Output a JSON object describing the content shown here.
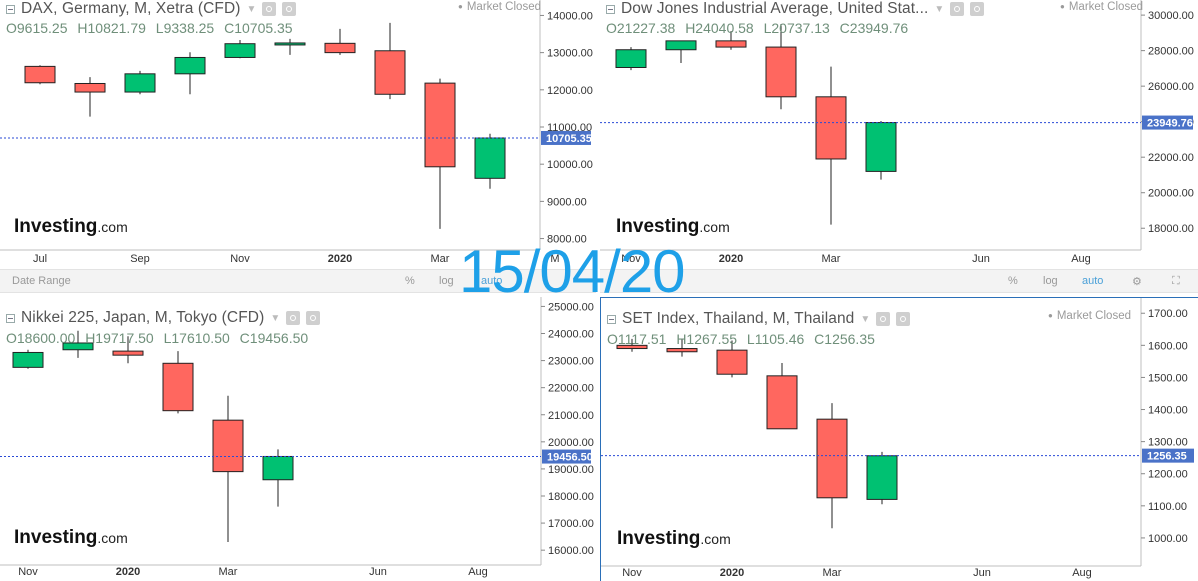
{
  "stamp": "15/04/20",
  "toolbars": [
    {
      "date_range": "Date Range",
      "pct": "%",
      "log": "log",
      "auto": "auto"
    },
    {
      "date_range": "",
      "pct": "%",
      "log": "log",
      "auto": "auto"
    }
  ],
  "colors": {
    "up": "#00c172",
    "down": "#ff675f",
    "price_line": "#2a4ad6",
    "price_tag": "#4a72c8"
  },
  "chart_data": [
    {
      "type": "candlestick",
      "title": "DAX, Germany, M, Xetra (CFD)",
      "ohlc_labels": [
        "O9615.25",
        "H10821.79",
        "L9338.25",
        "C10705.35"
      ],
      "market_status": "Market Closed",
      "logo": "Investing",
      "logo_suffix": ".com",
      "last_price": 10705.35,
      "last_price_label": "10705.35",
      "ylim": [
        7800,
        14200
      ],
      "y_ticks": [
        8000,
        9000,
        10000,
        11000,
        12000,
        13000,
        14000
      ],
      "y_tick_labels": [
        "8000.00",
        "9000.00",
        "10000.00",
        "11000.00",
        "12000.00",
        "13000.00",
        "14000.00"
      ],
      "x_ticks": [
        {
          "label": "Jul",
          "i": 0.3
        },
        {
          "label": "Sep",
          "i": 2.3
        },
        {
          "label": "Nov",
          "i": 4.3
        },
        {
          "label": "2020",
          "i": 6.3
        },
        {
          "label": "Mar",
          "i": 8.3
        },
        {
          "label": "M",
          "i": 10.6
        }
      ],
      "candles": [
        {
          "o": 12630,
          "h": 12660,
          "l": 12150,
          "c": 12190
        },
        {
          "o": 12170,
          "h": 12340,
          "l": 11280,
          "c": 11940
        },
        {
          "o": 11940,
          "h": 12510,
          "l": 11880,
          "c": 12430
        },
        {
          "o": 12430,
          "h": 13010,
          "l": 11880,
          "c": 12870
        },
        {
          "o": 12870,
          "h": 13340,
          "l": 12850,
          "c": 13240
        },
        {
          "o": 13250,
          "h": 13370,
          "l": 12940,
          "c": 13260
        },
        {
          "o": 13250,
          "h": 13640,
          "l": 12940,
          "c": 13000
        },
        {
          "o": 13050,
          "h": 13800,
          "l": 11750,
          "c": 11880
        },
        {
          "o": 12180,
          "h": 12300,
          "l": 8260,
          "c": 9930
        },
        {
          "o": 9620,
          "h": 10820,
          "l": 9340,
          "c": 10705
        }
      ]
    },
    {
      "type": "candlestick",
      "title": "Dow Jones Industrial Average, United Stat...",
      "ohlc_labels": [
        "O21227.38",
        "H24040.58",
        "L20737.13",
        "C23949.76"
      ],
      "market_status": "Market Closed",
      "logo": "Investing",
      "logo_suffix": ".com",
      "last_price": 23949.76,
      "last_price_label": "23949.76",
      "ylim": [
        17000,
        30400
      ],
      "y_ticks": [
        18000,
        20000,
        22000,
        24000,
        26000,
        28000,
        30000
      ],
      "y_tick_labels": [
        "18000.00",
        "20000.00",
        "22000.00",
        "24000.00",
        "26000.00",
        "28000.00",
        "30000.00"
      ],
      "x_ticks": [
        {
          "label": "Nov",
          "i": 0.3
        },
        {
          "label": "2020",
          "i": 2.3
        },
        {
          "label": "Mar",
          "i": 4.3
        },
        {
          "label": "Jun",
          "i": 7.3
        },
        {
          "label": "Aug",
          "i": 9.3
        }
      ],
      "candles": [
        {
          "o": 27050,
          "h": 28200,
          "l": 26900,
          "c": 28050
        },
        {
          "o": 28050,
          "h": 28550,
          "l": 27300,
          "c": 28550
        },
        {
          "o": 28550,
          "h": 29100,
          "l": 28050,
          "c": 28200
        },
        {
          "o": 28200,
          "h": 29500,
          "l": 24700,
          "c": 25400
        },
        {
          "o": 25400,
          "h": 27100,
          "l": 18200,
          "c": 21900
        },
        {
          "o": 21200,
          "h": 24040,
          "l": 20740,
          "c": 23950
        }
      ]
    },
    {
      "type": "candlestick",
      "title": "Nikkei 225, Japan, M, Tokyo (CFD)",
      "ohlc_labels": [
        "O18600.00",
        "H19717.50",
        "L17610.50",
        "C19456.50"
      ],
      "market_status": "",
      "logo": "Investing",
      "logo_suffix": ".com",
      "last_price": 19456.5,
      "last_price_label": "19456.50",
      "ylim": [
        15600,
        25200
      ],
      "y_ticks": [
        16000,
        17000,
        18000,
        19000,
        20000,
        21000,
        22000,
        23000,
        24000,
        25000
      ],
      "y_tick_labels": [
        "16000.00",
        "17000.00",
        "18000.00",
        "19000.00",
        "20000.00",
        "21000.00",
        "22000.00",
        "23000.00",
        "24000.00",
        "25000.00"
      ],
      "x_ticks": [
        {
          "label": "Nov",
          "i": 0.3
        },
        {
          "label": "2020",
          "i": 2.3
        },
        {
          "label": "Mar",
          "i": 4.3
        },
        {
          "label": "Jun",
          "i": 7.3
        },
        {
          "label": "Aug",
          "i": 9.3
        }
      ],
      "candles": [
        {
          "o": 22750,
          "h": 23400,
          "l": 22700,
          "c": 23300
        },
        {
          "o": 23400,
          "h": 24100,
          "l": 23100,
          "c": 23650
        },
        {
          "o": 23350,
          "h": 23900,
          "l": 22900,
          "c": 23200
        },
        {
          "o": 22900,
          "h": 23350,
          "l": 21050,
          "c": 21150
        },
        {
          "o": 20800,
          "h": 21700,
          "l": 16300,
          "c": 18900
        },
        {
          "o": 18600,
          "h": 19720,
          "l": 17610,
          "c": 19460
        }
      ]
    },
    {
      "type": "candlestick",
      "title": "SET Index, Thailand, M, Thailand",
      "ohlc_labels": [
        "O1117.51",
        "H1267.55",
        "L1105.46",
        "C1256.35"
      ],
      "market_status": "Market Closed",
      "logo": "Investing",
      "logo_suffix": ".com",
      "last_price": 1256.35,
      "last_price_label": "1256.35",
      "ylim": [
        925,
        1735
      ],
      "y_ticks": [
        1000,
        1100,
        1200,
        1300,
        1400,
        1500,
        1600,
        1700
      ],
      "y_tick_labels": [
        "1000.00",
        "1100.00",
        "1200.00",
        "1300.00",
        "1400.00",
        "1500.00",
        "1600.00",
        "1700.00"
      ],
      "x_ticks": [
        {
          "label": "Nov",
          "i": 0.3
        },
        {
          "label": "2020",
          "i": 2.3
        },
        {
          "label": "Mar",
          "i": 4.3
        },
        {
          "label": "Jun",
          "i": 7.3
        },
        {
          "label": "Aug",
          "i": 9.3
        }
      ],
      "candles": [
        {
          "o": 1600,
          "h": 1620,
          "l": 1580,
          "c": 1590
        },
        {
          "o": 1590,
          "h": 1620,
          "l": 1565,
          "c": 1580
        },
        {
          "o": 1585,
          "h": 1615,
          "l": 1500,
          "c": 1510
        },
        {
          "o": 1505,
          "h": 1545,
          "l": 1340,
          "c": 1340
        },
        {
          "o": 1370,
          "h": 1420,
          "l": 1030,
          "c": 1125
        },
        {
          "o": 1120,
          "h": 1268,
          "l": 1105,
          "c": 1256
        }
      ]
    }
  ]
}
